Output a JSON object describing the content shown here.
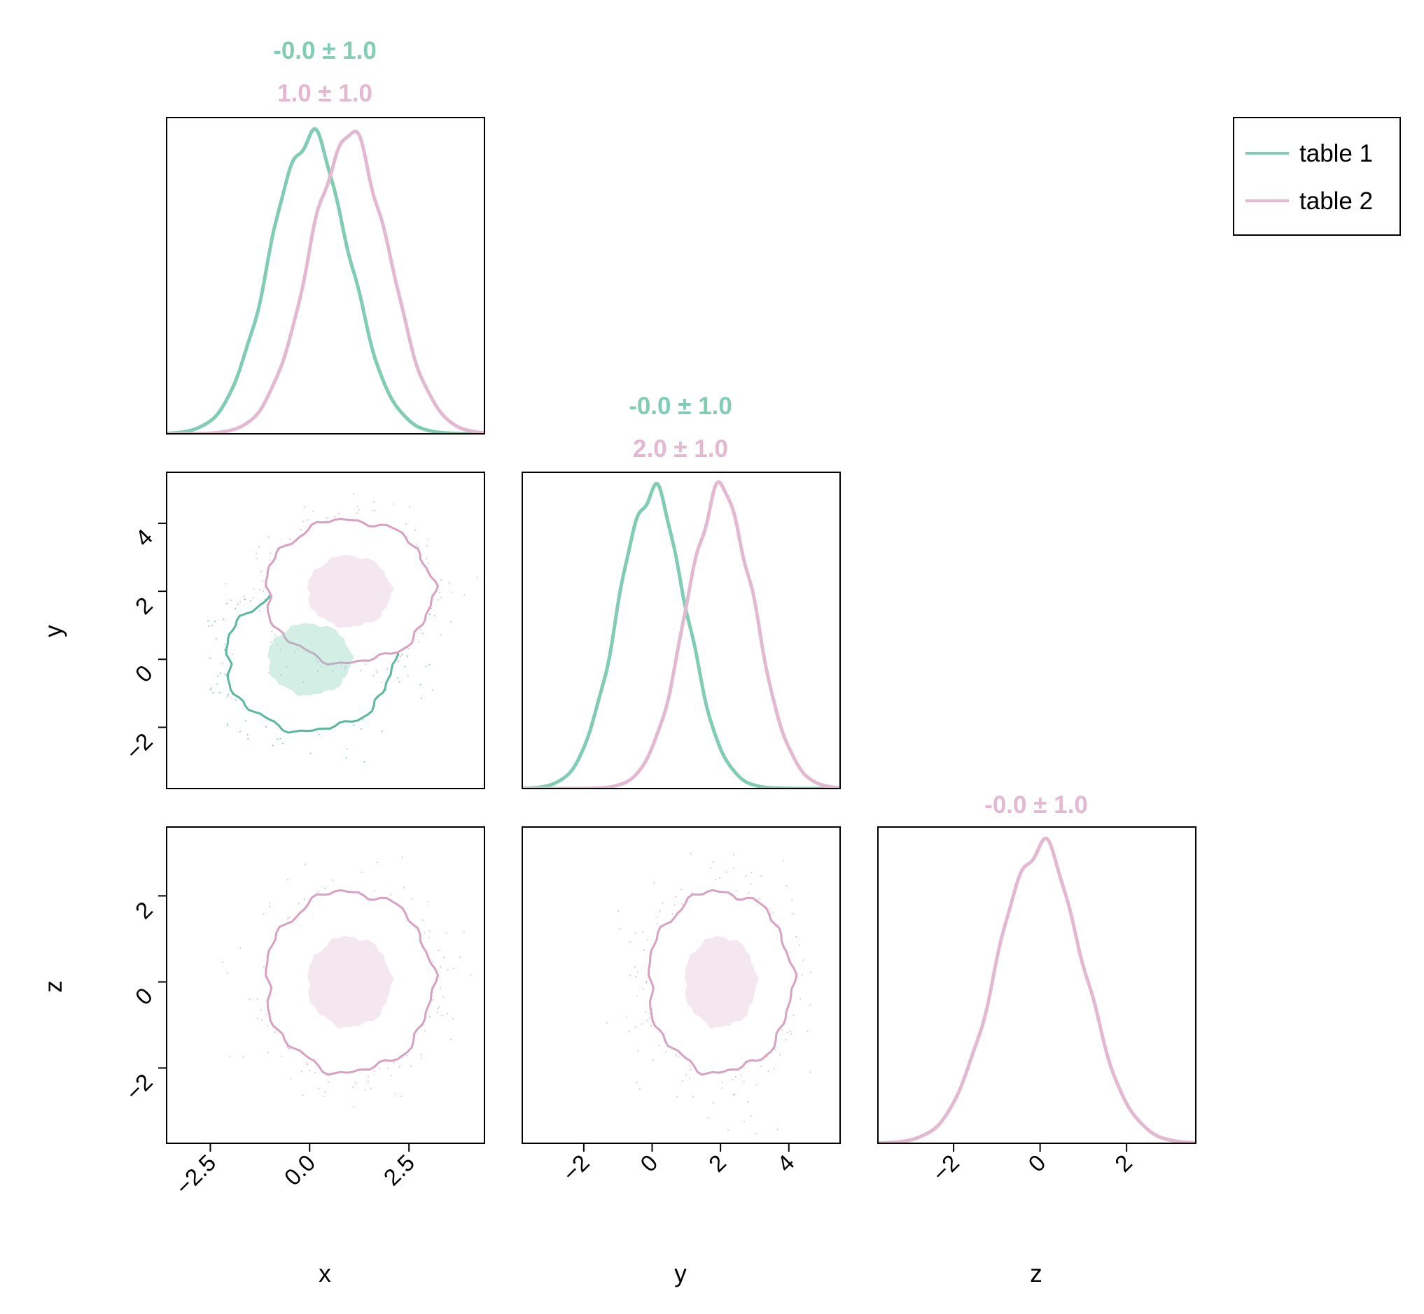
{
  "colors": {
    "table1": "#80cdb4",
    "table1_dark": "#5ab89b",
    "table2": "#e3b9d2",
    "table2_dark": "#d7a2c2",
    "axis": "#000000"
  },
  "legend": {
    "position": "top-right",
    "entries": [
      {
        "label": "table 1",
        "color": "#80cdb4"
      },
      {
        "label": "table 2",
        "color": "#e3b9d2"
      }
    ]
  },
  "chart_data": {
    "type": "corner",
    "variables": [
      "x",
      "y",
      "z"
    ],
    "axis_labels": {
      "x": "x",
      "y": "y",
      "z": "z"
    },
    "ranges": {
      "x": [
        -3.6,
        4.4
      ],
      "y": [
        -3.8,
        5.5
      ],
      "z": [
        -3.75,
        3.6
      ]
    },
    "ticks": {
      "x": [
        {
          "value": -2.5,
          "label": "−2.5"
        },
        {
          "value": 0.0,
          "label": "0.0"
        },
        {
          "value": 2.5,
          "label": "2.5"
        }
      ],
      "y": [
        {
          "value": -2,
          "label": "−2"
        },
        {
          "value": 0,
          "label": "0"
        },
        {
          "value": 2,
          "label": "2"
        },
        {
          "value": 4,
          "label": "4"
        }
      ],
      "z": [
        {
          "value": -2,
          "label": "−2"
        },
        {
          "value": 0,
          "label": "0"
        },
        {
          "value": 2,
          "label": "2"
        }
      ]
    },
    "grid": false,
    "series": [
      {
        "name": "table 1",
        "color": "#80cdb4",
        "x": {
          "mean": 0.0,
          "std": 1.0
        },
        "y": {
          "mean": 0.0,
          "std": 1.0
        }
      },
      {
        "name": "table 2",
        "color": "#e3b9d2",
        "x": {
          "mean": 1.0,
          "std": 1.0
        },
        "y": {
          "mean": 2.0,
          "std": 1.0
        },
        "z": {
          "mean": 0.0,
          "std": 1.0
        }
      }
    ],
    "marginal_titles": {
      "x": [
        {
          "text": "-0.0 ± 1.0",
          "color": "#80cdb4"
        },
        {
          "text": "1.0 ± 1.0",
          "color": "#e3b9d2"
        }
      ],
      "y": [
        {
          "text": "-0.0 ± 1.0",
          "color": "#80cdb4"
        },
        {
          "text": "2.0 ± 1.0",
          "color": "#e3b9d2"
        }
      ],
      "z": [
        {
          "text": "-0.0 ± 1.0",
          "color": "#e3b9d2"
        }
      ]
    }
  }
}
